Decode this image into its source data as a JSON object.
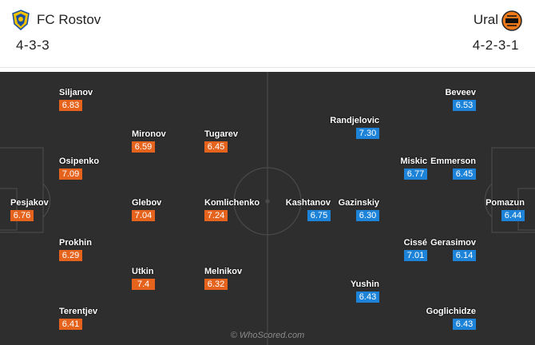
{
  "home": {
    "name": "FC Rostov",
    "formation": "4-3-3",
    "players": [
      {
        "name": "Siljanov",
        "rating": "6.83"
      },
      {
        "name": "Mironov",
        "rating": "6.59"
      },
      {
        "name": "Tugarev",
        "rating": "6.45"
      },
      {
        "name": "Osipenko",
        "rating": "7.09"
      },
      {
        "name": "Pesjakov",
        "rating": "6.76"
      },
      {
        "name": "Glebov",
        "rating": "7.04"
      },
      {
        "name": "Komlichenko",
        "rating": "7.24"
      },
      {
        "name": "Prokhin",
        "rating": "6.29"
      },
      {
        "name": "Utkin",
        "rating": "7.4"
      },
      {
        "name": "Melnikov",
        "rating": "6.32"
      },
      {
        "name": "Terentjev",
        "rating": "6.41"
      }
    ]
  },
  "away": {
    "name": "Ural",
    "formation": "4-2-3-1",
    "players": [
      {
        "name": "Beveev",
        "rating": "6.53"
      },
      {
        "name": "Randjelovic",
        "rating": "7.30"
      },
      {
        "name": "Miskic",
        "rating": "6.77"
      },
      {
        "name": "Emmerson",
        "rating": "6.45"
      },
      {
        "name": "Kashtanov",
        "rating": "6.75"
      },
      {
        "name": "Gazinskiy",
        "rating": "6.30"
      },
      {
        "name": "Pomazun",
        "rating": "6.44"
      },
      {
        "name": "Cissé",
        "rating": "7.01"
      },
      {
        "name": "Gerasimov",
        "rating": "6.14"
      },
      {
        "name": "Yushin",
        "rating": "6.43"
      },
      {
        "name": "Goglichidze",
        "rating": "6.43"
      }
    ]
  },
  "watermark": "© WhoScored.com",
  "colors": {
    "pitch": "#2e2e2e",
    "lines": "#4a4a4a",
    "home_rating": "#e5631c",
    "away_rating": "#1c83d8"
  },
  "icons": {
    "home_badge": "rostov-crest-icon",
    "away_badge": "ural-crest-icon"
  }
}
